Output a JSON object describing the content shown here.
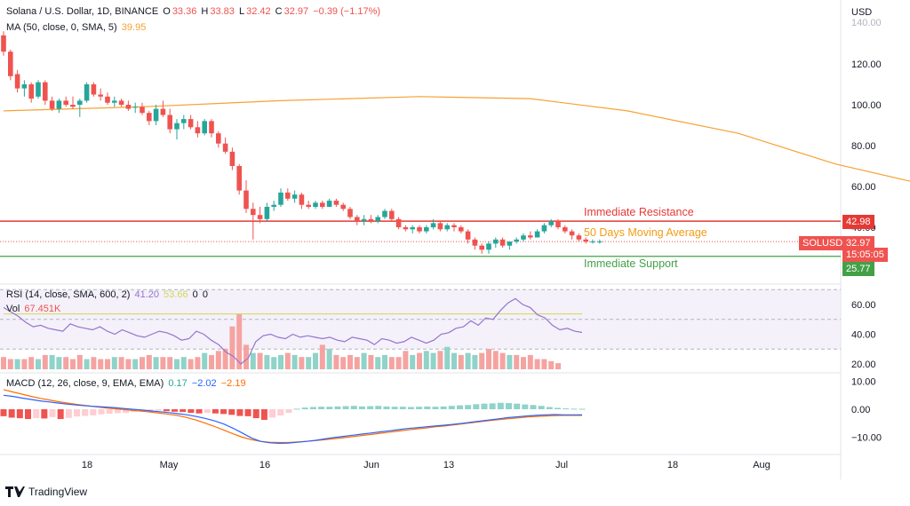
{
  "header": {
    "symbol_line": "Solana / U.S. Dollar, 1D, BINANCE",
    "o_label": "O",
    "o_val": "33.36",
    "h_label": "H",
    "h_val": "33.83",
    "l_label": "L",
    "l_val": "32.42",
    "c_label": "C",
    "c_val": "32.97",
    "change": "−0.39 (−1.17%)",
    "ma_label": "MA (50, close, 0, SMA, 5)",
    "ma_val": "39.95"
  },
  "rsi": {
    "label": "RSI (14, close, SMA, 600, 2)",
    "v1": "41.20",
    "v2": "53.66",
    "v3": "0",
    "v4": "0"
  },
  "vol": {
    "label": "Vol",
    "value": "67.451K"
  },
  "macd": {
    "label": "MACD (12, 26, close, 9, EMA, EMA)",
    "v1": "0.17",
    "v2": "−2.02",
    "v3": "−2.19"
  },
  "annotations": {
    "resistance": "Immediate Resistance",
    "ma": "50 Days Moving Average",
    "support": "Immediate Support"
  },
  "price_tags": {
    "resistance": "42.98",
    "current_symbol": "SOLUSD",
    "current": "32.97",
    "countdown": "15:05:05",
    "support": "25.77"
  },
  "currency": "USD",
  "brand": "TradingView",
  "colors": {
    "up": "#26a69a",
    "down": "#ef5350",
    "ma": "#f7a133",
    "resistance": "#e53935",
    "support": "#43a047",
    "rsi": "#9575cd",
    "macd": "#2962ff",
    "signal": "#ff6d00"
  },
  "chart_data": {
    "type": "candlestick",
    "price_axis": {
      "ticks": [
        120,
        100,
        80,
        60,
        40
      ],
      "tick_labels": [
        "120.00",
        "100.00",
        "80.00",
        "60.00",
        "40.00"
      ],
      "top_label": "140.00",
      "ylim": [
        20,
        142
      ]
    },
    "rsi_axis": {
      "ticks": [
        60,
        40,
        20
      ],
      "tick_labels": [
        "60.00",
        "40.00",
        "20.00"
      ]
    },
    "macd_axis": {
      "ticks": [
        10,
        0,
        -10
      ],
      "tick_labels": [
        "10.00",
        "0.00",
        "−10.00"
      ]
    },
    "x_tick_labels": [
      "18",
      "May",
      "16",
      "Jun",
      "13",
      "Jul",
      "18",
      "Aug"
    ],
    "levels": {
      "resistance": 42.98,
      "support": 25.77,
      "current": 32.97
    },
    "candles": [
      [
        134,
        136,
        124,
        126
      ],
      [
        126,
        127,
        112,
        114
      ],
      [
        115,
        117,
        106,
        108
      ],
      [
        108,
        112,
        104,
        110
      ],
      [
        110,
        111,
        101,
        103
      ],
      [
        104,
        112,
        103,
        111
      ],
      [
        111,
        112,
        100,
        102
      ],
      [
        102,
        104,
        97,
        98
      ],
      [
        98,
        103,
        96,
        102
      ],
      [
        102,
        104,
        99,
        100
      ],
      [
        100,
        104,
        98,
        99
      ],
      [
        100,
        103,
        94,
        102
      ],
      [
        102,
        111,
        101,
        110
      ],
      [
        110,
        111,
        104,
        105
      ],
      [
        105,
        108,
        102,
        104
      ],
      [
        104,
        106,
        100,
        101
      ],
      [
        101,
        104,
        99,
        102
      ],
      [
        102,
        103,
        99,
        100
      ],
      [
        100,
        102,
        97,
        98
      ],
      [
        99,
        101,
        96,
        99
      ],
      [
        99,
        101,
        95,
        96
      ],
      [
        96,
        97,
        90,
        92
      ],
      [
        92,
        100,
        90,
        98
      ],
      [
        98,
        102,
        94,
        95
      ],
      [
        95,
        98,
        86,
        88
      ],
      [
        88,
        93,
        83,
        91
      ],
      [
        91,
        95,
        88,
        93
      ],
      [
        93,
        95,
        88,
        89
      ],
      [
        89,
        92,
        84,
        86
      ],
      [
        86,
        93,
        85,
        92
      ],
      [
        92,
        93,
        84,
        86
      ],
      [
        86,
        87,
        79,
        81
      ],
      [
        81,
        84,
        76,
        77
      ],
      [
        77,
        79,
        68,
        70
      ],
      [
        70,
        71,
        56,
        58
      ],
      [
        58,
        63,
        47,
        49
      ],
      [
        49,
        52,
        34,
        46
      ],
      [
        46,
        50,
        42,
        44
      ],
      [
        44,
        52,
        43,
        50
      ],
      [
        50,
        53,
        48,
        51
      ],
      [
        51,
        59,
        50,
        57
      ],
      [
        57,
        59,
        53,
        54
      ],
      [
        54,
        58,
        52,
        56
      ],
      [
        56,
        57,
        49,
        51
      ],
      [
        51,
        53,
        49,
        50
      ],
      [
        50,
        53,
        49,
        52
      ],
      [
        52,
        53,
        49,
        50
      ],
      [
        50,
        54,
        50,
        53
      ],
      [
        53,
        54,
        50,
        51
      ],
      [
        51,
        52,
        48,
        49
      ],
      [
        49,
        50,
        44,
        45
      ],
      [
        45,
        46,
        41,
        43
      ],
      [
        43,
        46,
        41,
        44
      ],
      [
        44,
        46,
        42,
        43
      ],
      [
        43,
        46,
        42,
        45
      ],
      [
        45,
        49,
        44,
        48
      ],
      [
        48,
        49,
        43,
        44
      ],
      [
        44,
        45,
        39,
        40
      ],
      [
        40,
        41,
        38,
        39
      ],
      [
        39,
        41,
        37,
        40
      ],
      [
        40,
        41,
        37,
        38
      ],
      [
        38,
        41,
        37,
        40
      ],
      [
        40,
        44,
        39,
        42
      ],
      [
        42,
        43,
        38,
        39
      ],
      [
        39,
        42,
        38,
        41
      ],
      [
        41,
        42,
        38,
        40
      ],
      [
        40,
        41,
        37,
        38
      ],
      [
        38,
        39,
        32,
        34
      ],
      [
        34,
        35,
        29,
        31
      ],
      [
        31,
        32,
        27,
        29
      ],
      [
        29,
        33,
        27,
        32
      ],
      [
        32,
        35,
        30,
        34
      ],
      [
        34,
        35,
        30,
        31
      ],
      [
        31,
        33,
        29,
        33
      ],
      [
        33,
        35,
        32,
        34
      ],
      [
        34,
        37,
        33,
        36
      ],
      [
        36,
        38,
        34,
        35
      ],
      [
        35,
        39,
        35,
        38
      ],
      [
        38,
        42,
        37,
        41
      ],
      [
        41,
        44,
        40,
        43
      ],
      [
        43,
        44,
        39,
        40
      ],
      [
        40,
        41,
        37,
        38
      ],
      [
        38,
        39,
        34,
        36
      ],
      [
        36,
        37,
        33,
        34
      ],
      [
        34,
        35,
        32,
        33
      ],
      [
        33,
        34,
        32,
        33
      ],
      [
        33,
        34,
        32,
        33
      ]
    ],
    "ma50": [
      [
        0,
        97
      ],
      [
        20,
        99
      ],
      [
        40,
        102
      ],
      [
        60,
        104
      ],
      [
        76,
        103
      ],
      [
        90,
        97
      ],
      [
        106,
        86
      ],
      [
        120,
        71
      ],
      [
        134,
        60
      ],
      [
        148,
        51
      ],
      [
        158,
        47
      ],
      [
        166,
        43.5
      ],
      [
        172,
        40.5
      ]
    ],
    "rsi": [
      58,
      55,
      52,
      48,
      45,
      46,
      44,
      43,
      42,
      47,
      45,
      44,
      43,
      45,
      42,
      40,
      43,
      41,
      39,
      38,
      40,
      42,
      41,
      39,
      36,
      37,
      42,
      40,
      36,
      33,
      28,
      25,
      20,
      24,
      35,
      39,
      40,
      38,
      37,
      40,
      38,
      39,
      38,
      37,
      38,
      36,
      35,
      38,
      37,
      36,
      33,
      37,
      36,
      34,
      35,
      38,
      36,
      34,
      36,
      40,
      41,
      44,
      45,
      49,
      46,
      51,
      50,
      56,
      61,
      64,
      60,
      58,
      53,
      51,
      46,
      43,
      44,
      42,
      41.2
    ],
    "rsi_ma": 53.66,
    "volume": [
      6,
      5,
      5,
      5,
      6,
      5,
      7,
      7,
      6,
      6,
      5,
      7,
      5,
      6,
      5,
      5,
      6,
      6,
      5,
      5,
      6,
      7,
      6,
      6,
      6,
      5,
      6,
      5,
      6,
      8,
      7,
      9,
      10,
      21,
      27,
      12,
      8,
      8,
      7,
      6,
      7,
      8,
      7,
      6,
      6,
      8,
      12,
      10,
      7,
      6,
      7,
      6,
      8,
      7,
      6,
      7,
      6,
      6,
      9,
      7,
      8,
      9,
      8,
      9,
      11,
      8,
      7,
      8,
      7,
      8,
      10,
      9,
      8,
      7,
      7,
      6,
      7,
      5,
      5,
      4,
      3
    ],
    "volume_up": [
      0,
      0,
      1,
      0,
      0,
      1,
      0,
      1,
      1,
      0,
      0,
      0,
      1,
      0,
      0,
      0,
      1,
      0,
      0,
      1,
      0,
      0,
      1,
      0,
      0,
      1,
      1,
      0,
      0,
      1,
      0,
      0,
      0,
      0,
      0,
      0,
      1,
      0,
      1,
      1,
      1,
      0,
      1,
      0,
      1,
      1,
      0,
      1,
      0,
      0,
      0,
      0,
      1,
      0,
      1,
      1,
      0,
      0,
      0,
      1,
      0,
      1,
      1,
      0,
      1,
      1,
      0,
      1,
      1,
      0,
      0,
      0,
      0,
      1,
      0,
      0,
      0,
      0,
      0,
      0,
      0
    ],
    "macd_line": [
      5,
      4.6,
      4,
      3.5,
      3,
      2.6,
      2.2,
      1.8,
      1.5,
      1.2,
      1.0,
      0.8,
      0.6,
      0.3,
      0,
      -0.3,
      -0.6,
      -0.9,
      -1.2,
      -1.6,
      -2,
      -2.6,
      -3.3,
      -4.2,
      -5.3,
      -6.8,
      -8.5,
      -10.3,
      -11.5,
      -12,
      -12.2,
      -12.1,
      -11.8,
      -11.5,
      -11.1,
      -10.6,
      -10.1,
      -9.7,
      -9.3,
      -8.9,
      -8.5,
      -8.1,
      -7.7,
      -7.3,
      -6.9,
      -6.6,
      -6.3,
      -6,
      -5.7,
      -5.4,
      -5,
      -4.6,
      -4.2,
      -3.8,
      -3.4,
      -3.0,
      -2.7,
      -2.4,
      -2.2,
      -2.0,
      -1.9,
      -2.0,
      -2.0,
      -2.02
    ],
    "signal_line": [
      7,
      6.2,
      5.4,
      4.6,
      3.9,
      3.3,
      2.7,
      2.2,
      1.7,
      1.3,
      0.9,
      0.5,
      0.2,
      -0.1,
      -0.4,
      -0.7,
      -1.0,
      -1.4,
      -1.8,
      -2.3,
      -3.0,
      -3.9,
      -5.0,
      -6.2,
      -7.5,
      -8.8,
      -10.0,
      -10.9,
      -11.5,
      -11.8,
      -11.9,
      -11.9,
      -11.7,
      -11.5,
      -11.2,
      -10.9,
      -10.5,
      -10.2,
      -9.8,
      -9.4,
      -9.0,
      -8.6,
      -8.2,
      -7.8,
      -7.4,
      -7.0,
      -6.7,
      -6.3,
      -6.0,
      -5.6,
      -5.2,
      -4.8,
      -4.4,
      -4.0,
      -3.7,
      -3.4,
      -3.1,
      -2.8,
      -2.6,
      -2.4,
      -2.3,
      -2.2,
      -2.2,
      -2.19
    ],
    "macd_hist": [
      -2.5,
      -3,
      -3.2,
      -3.5,
      -3.2,
      -3.3,
      -2.8,
      -3.5,
      -3.1,
      -2.6,
      -2.4,
      -2.2,
      -1.8,
      -1.6,
      -1.4,
      -1.3,
      -1.0,
      -0.8,
      -0.6,
      -0.5,
      -0.7,
      -0.9,
      -1.0,
      -1.3,
      -1.5,
      -1.3,
      -1.5,
      -1.7,
      -2.0,
      -2.4,
      -2.5,
      -3.2,
      -3.8,
      -3.0,
      -2.2,
      -1.3,
      0.2,
      0.6,
      0.8,
      0.9,
      0.9,
      1.0,
      1.1,
      1.2,
      1.0,
      1.1,
      1.2,
      1.0,
      0.9,
      0.9,
      0.8,
      0.9,
      1.0,
      0.9,
      1.0,
      1.2,
      1.4,
      1.5,
      1.8,
      2.0,
      2.1,
      2.3,
      2.2,
      2.0,
      1.7,
      1.5,
      1.2,
      0.8,
      0.5,
      0.3,
      0.2,
      0.17
    ]
  }
}
